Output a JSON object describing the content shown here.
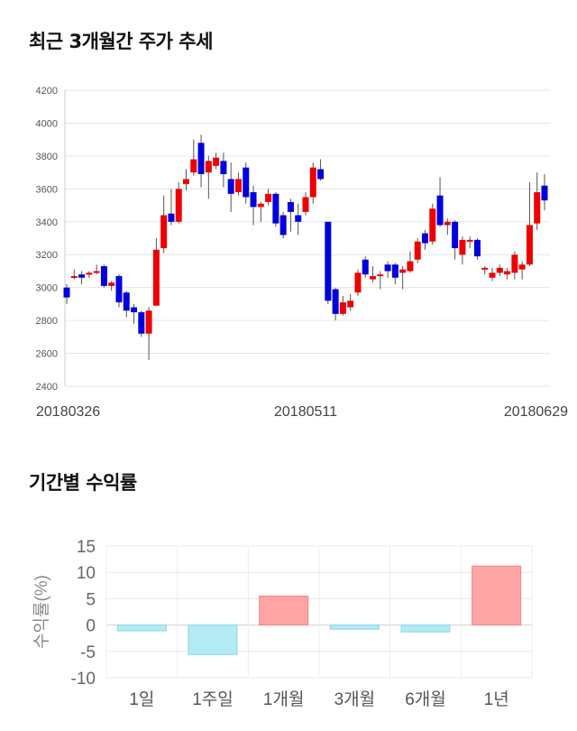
{
  "titles": {
    "price": "최근 3개월간 주가 추세",
    "returns": "기간별 수익률"
  },
  "chart_data": [
    {
      "type": "candlestick",
      "title": "최근 3개월간 주가 추세",
      "ylim": [
        2400,
        4200
      ],
      "yticks": [
        "2400",
        "2600",
        "2800",
        "3000",
        "3200",
        "3400",
        "3600",
        "3800",
        "4000",
        "4200"
      ],
      "x_labels": [
        "20180326",
        "20180511",
        "20180629"
      ],
      "x_label_index": [
        0,
        32,
        64
      ],
      "colors": {
        "up": "#ee0000",
        "down": "#0000dd"
      },
      "candles": [
        [
          3000,
          2940,
          3020,
          2900
        ],
        [
          3070,
          3070,
          3110,
          3050
        ],
        [
          3080,
          3060,
          3100,
          3020
        ],
        [
          3090,
          3090,
          3100,
          3060
        ],
        [
          3100,
          3100,
          3140,
          3080
        ],
        [
          3130,
          3010,
          3140,
          3000
        ],
        [
          3010,
          3030,
          3040,
          2980
        ],
        [
          3070,
          2910,
          3080,
          2880
        ],
        [
          2970,
          2860,
          2980,
          2820
        ],
        [
          2880,
          2850,
          2900,
          2780
        ],
        [
          2850,
          2720,
          2860,
          2700
        ],
        [
          2720,
          2860,
          2880,
          2560
        ],
        [
          2890,
          3230,
          3300,
          2890
        ],
        [
          3240,
          3440,
          3560,
          3210
        ],
        [
          3450,
          3400,
          3600,
          3380
        ],
        [
          3400,
          3600,
          3640,
          3390
        ],
        [
          3630,
          3660,
          3720,
          3590
        ],
        [
          3700,
          3780,
          3900,
          3680
        ],
        [
          3880,
          3690,
          3930,
          3610
        ],
        [
          3700,
          3770,
          3800,
          3540
        ],
        [
          3740,
          3790,
          3820,
          3720
        ],
        [
          3770,
          3690,
          3820,
          3610
        ],
        [
          3660,
          3570,
          3760,
          3460
        ],
        [
          3580,
          3660,
          3700,
          3560
        ],
        [
          3730,
          3550,
          3760,
          3510
        ],
        [
          3580,
          3490,
          3620,
          3380
        ],
        [
          3490,
          3510,
          3520,
          3400
        ],
        [
          3520,
          3570,
          3600,
          3500
        ],
        [
          3570,
          3390,
          3580,
          3370
        ],
        [
          3440,
          3320,
          3460,
          3300
        ],
        [
          3520,
          3460,
          3540,
          3340
        ],
        [
          3440,
          3400,
          3510,
          3320
        ],
        [
          3460,
          3550,
          3580,
          3440
        ],
        [
          3550,
          3730,
          3760,
          3510
        ],
        [
          3720,
          3660,
          3780,
          3650
        ],
        [
          3400,
          2920,
          3400,
          2900
        ],
        [
          2990,
          2840,
          3000,
          2800
        ],
        [
          2840,
          2910,
          2950,
          2830
        ],
        [
          2880,
          2920,
          2960,
          2860
        ],
        [
          2970,
          3090,
          3110,
          2950
        ],
        [
          3170,
          3080,
          3190,
          3060
        ],
        [
          3050,
          3070,
          3130,
          3030
        ],
        [
          3070,
          3080,
          3100,
          2990
        ],
        [
          3140,
          3100,
          3160,
          3060
        ],
        [
          3140,
          3060,
          3150,
          3020
        ],
        [
          3090,
          3110,
          3130,
          2990
        ],
        [
          3100,
          3160,
          3220,
          3090
        ],
        [
          3170,
          3280,
          3300,
          3150
        ],
        [
          3330,
          3270,
          3350,
          3230
        ],
        [
          3280,
          3480,
          3510,
          3260
        ],
        [
          3560,
          3380,
          3670,
          3370
        ],
        [
          3380,
          3400,
          3420,
          3320
        ],
        [
          3400,
          3240,
          3410,
          3170
        ],
        [
          3200,
          3290,
          3310,
          3140
        ],
        [
          3290,
          3290,
          3310,
          3240
        ],
        [
          3290,
          3190,
          3300,
          3170
        ],
        [
          3120,
          3120,
          3130,
          3080
        ],
        [
          3060,
          3090,
          3120,
          3040
        ],
        [
          3090,
          3120,
          3140,
          3070
        ],
        [
          3080,
          3100,
          3120,
          3050
        ],
        [
          3090,
          3200,
          3220,
          3050
        ],
        [
          3110,
          3140,
          3160,
          3050
        ],
        [
          3140,
          3380,
          3640,
          3130
        ],
        [
          3390,
          3580,
          3700,
          3350
        ],
        [
          3620,
          3530,
          3690,
          3470
        ]
      ]
    },
    {
      "type": "bar",
      "title": "기간별 수익률",
      "ylabel": "수익률(%)",
      "ylim": [
        -10,
        15
      ],
      "yticks": [
        "15",
        "10",
        "5",
        "0",
        "-5",
        "-10"
      ],
      "categories": [
        "1일",
        "1주일",
        "1개월",
        "3개월",
        "6개월",
        "1년"
      ],
      "values": [
        -1.1,
        -5.6,
        5.5,
        -0.8,
        -1.3,
        11.2
      ],
      "colors": {
        "positive": "#ffa4a4",
        "negative": "#b3ebf4"
      }
    }
  ]
}
